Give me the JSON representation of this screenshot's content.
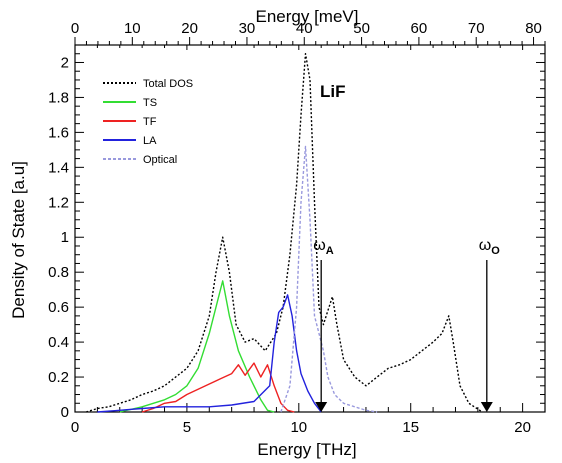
{
  "chart_data": {
    "type": "line",
    "title": "",
    "annotation_text": "LiF",
    "xlabel": "Energy [THz]",
    "ylabel": "Density of State [a.u]",
    "top_xlabel": "Energy [meV]",
    "xlim": [
      0,
      21
    ],
    "ylim": [
      0,
      2.1
    ],
    "top_xlim_meV": [
      0,
      82
    ],
    "x_ticks": [
      "0",
      "5",
      "10",
      "15",
      "20"
    ],
    "y_ticks": [
      "0",
      "0.2",
      "0.4",
      "0.6",
      "0.8",
      "1",
      "1.2",
      "1.4",
      "1.6",
      "1.8",
      "2"
    ],
    "top_ticks": [
      "0",
      "10",
      "20",
      "30",
      "40",
      "50",
      "60",
      "70",
      "80"
    ],
    "legend_position": "top-left",
    "grid": false,
    "markers": [
      {
        "label_main": "ω",
        "label_sub": "A",
        "x": 11.0,
        "y_top": 0.87,
        "y_bottom": 0.0
      },
      {
        "label_main": "ω",
        "label_sub": "O",
        "x": 18.4,
        "y_top": 0.87,
        "y_bottom": 0.0
      }
    ],
    "series": [
      {
        "name": "Total DOS",
        "color": "#000000",
        "dash": "dotted",
        "points": [
          [
            0.5,
            0.0
          ],
          [
            1,
            0.02
          ],
          [
            1.5,
            0.03
          ],
          [
            2,
            0.05
          ],
          [
            2.5,
            0.07
          ],
          [
            3,
            0.1
          ],
          [
            3.5,
            0.12
          ],
          [
            4,
            0.15
          ],
          [
            4.5,
            0.2
          ],
          [
            5,
            0.25
          ],
          [
            5.5,
            0.35
          ],
          [
            6,
            0.55
          ],
          [
            6.3,
            0.8
          ],
          [
            6.6,
            1.0
          ],
          [
            6.9,
            0.8
          ],
          [
            7.2,
            0.5
          ],
          [
            7.6,
            0.4
          ],
          [
            8,
            0.42
          ],
          [
            8.5,
            0.35
          ],
          [
            9,
            0.45
          ],
          [
            9.3,
            0.6
          ],
          [
            9.6,
            0.9
          ],
          [
            9.9,
            1.3
          ],
          [
            10.1,
            1.7
          ],
          [
            10.3,
            2.05
          ],
          [
            10.5,
            1.9
          ],
          [
            10.7,
            1.2
          ],
          [
            10.9,
            0.6
          ],
          [
            11.1,
            0.5
          ],
          [
            11.3,
            0.58
          ],
          [
            11.5,
            0.66
          ],
          [
            11.7,
            0.5
          ],
          [
            12,
            0.3
          ],
          [
            12.5,
            0.2
          ],
          [
            13,
            0.15
          ],
          [
            13.5,
            0.2
          ],
          [
            14,
            0.25
          ],
          [
            14.5,
            0.27
          ],
          [
            15,
            0.3
          ],
          [
            15.5,
            0.35
          ],
          [
            16,
            0.4
          ],
          [
            16.4,
            0.45
          ],
          [
            16.7,
            0.55
          ],
          [
            16.9,
            0.4
          ],
          [
            17.2,
            0.15
          ],
          [
            17.6,
            0.05
          ],
          [
            18.2,
            0.0
          ]
        ]
      },
      {
        "name": "TS",
        "color": "#33dd33",
        "dash": "solid",
        "points": [
          [
            2,
            0.0
          ],
          [
            3,
            0.03
          ],
          [
            4,
            0.07
          ],
          [
            4.5,
            0.1
          ],
          [
            5,
            0.15
          ],
          [
            5.5,
            0.25
          ],
          [
            6,
            0.45
          ],
          [
            6.4,
            0.65
          ],
          [
            6.6,
            0.75
          ],
          [
            6.9,
            0.55
          ],
          [
            7.3,
            0.35
          ],
          [
            7.8,
            0.2
          ],
          [
            8.3,
            0.07
          ],
          [
            8.6,
            0.01
          ],
          [
            8.9,
            0.0
          ]
        ]
      },
      {
        "name": "TF",
        "color": "#ee2222",
        "dash": "solid",
        "points": [
          [
            3,
            0.0
          ],
          [
            3.5,
            0.02
          ],
          [
            4,
            0.05
          ],
          [
            4.5,
            0.06
          ],
          [
            5,
            0.1
          ],
          [
            5.5,
            0.13
          ],
          [
            6,
            0.16
          ],
          [
            6.5,
            0.19
          ],
          [
            7,
            0.22
          ],
          [
            7.3,
            0.27
          ],
          [
            7.6,
            0.21
          ],
          [
            8,
            0.28
          ],
          [
            8.3,
            0.2
          ],
          [
            8.6,
            0.27
          ],
          [
            8.9,
            0.15
          ],
          [
            9.2,
            0.05
          ],
          [
            9.5,
            0.01
          ],
          [
            9.8,
            0.0
          ]
        ]
      },
      {
        "name": "LA",
        "color": "#2222dd",
        "dash": "solid",
        "points": [
          [
            1,
            0.0
          ],
          [
            2,
            0.01
          ],
          [
            3,
            0.02
          ],
          [
            4,
            0.03
          ],
          [
            5,
            0.03
          ],
          [
            6,
            0.03
          ],
          [
            7,
            0.04
          ],
          [
            8,
            0.06
          ],
          [
            8.7,
            0.15
          ],
          [
            8.9,
            0.4
          ],
          [
            9.1,
            0.57
          ],
          [
            9.3,
            0.6
          ],
          [
            9.5,
            0.67
          ],
          [
            9.7,
            0.55
          ],
          [
            9.9,
            0.35
          ],
          [
            10.1,
            0.22
          ],
          [
            10.4,
            0.12
          ],
          [
            10.7,
            0.05
          ],
          [
            11,
            0.0
          ]
        ]
      },
      {
        "name": "Optical",
        "color": "#9999dd",
        "dash": "dashed",
        "points": [
          [
            9.2,
            0.0
          ],
          [
            9.6,
            0.15
          ],
          [
            9.9,
            0.6
          ],
          [
            10.1,
            1.2
          ],
          [
            10.3,
            1.52
          ],
          [
            10.5,
            1.1
          ],
          [
            10.7,
            0.55
          ],
          [
            10.9,
            0.45
          ],
          [
            11.1,
            0.35
          ],
          [
            11.3,
            0.2
          ],
          [
            11.6,
            0.1
          ],
          [
            12,
            0.05
          ],
          [
            12.5,
            0.03
          ],
          [
            13,
            0.01
          ],
          [
            13.5,
            0.0
          ]
        ]
      }
    ]
  }
}
